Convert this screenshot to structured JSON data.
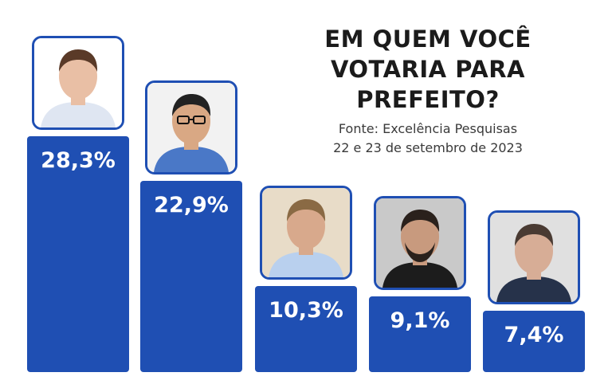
{
  "header": {
    "title_lines": [
      "EM QUEM VOCÊ",
      "VOTARIA PARA",
      "PREFEITO?"
    ],
    "source_lines": [
      "Fonte: Excelência Pesquisas",
      "22 e 23 de setembro de 2023"
    ]
  },
  "colors": {
    "bar": "#1f4fb3",
    "label": "#ffffff"
  },
  "chart_data": {
    "type": "bar",
    "title": "EM QUEM VOCÊ VOTARIA PARA PREFEITO?",
    "subtitle": "Fonte: Excelência Pesquisas 22 e 23 de setembro de 2023",
    "categories": [
      "",
      "",
      "",
      "",
      ""
    ],
    "values": [
      28.3,
      22.9,
      10.3,
      9.1,
      7.4
    ],
    "value_labels": [
      "28,3%",
      "22,9%",
      "10,3%",
      "9,1%",
      "7,4%"
    ],
    "unit": "%",
    "ylim": [
      0,
      30
    ],
    "grid": false,
    "legend": "none",
    "icons": [
      "candidate-photo",
      "candidate-photo",
      "candidate-photo",
      "candidate-photo",
      "candidate-photo"
    ]
  }
}
